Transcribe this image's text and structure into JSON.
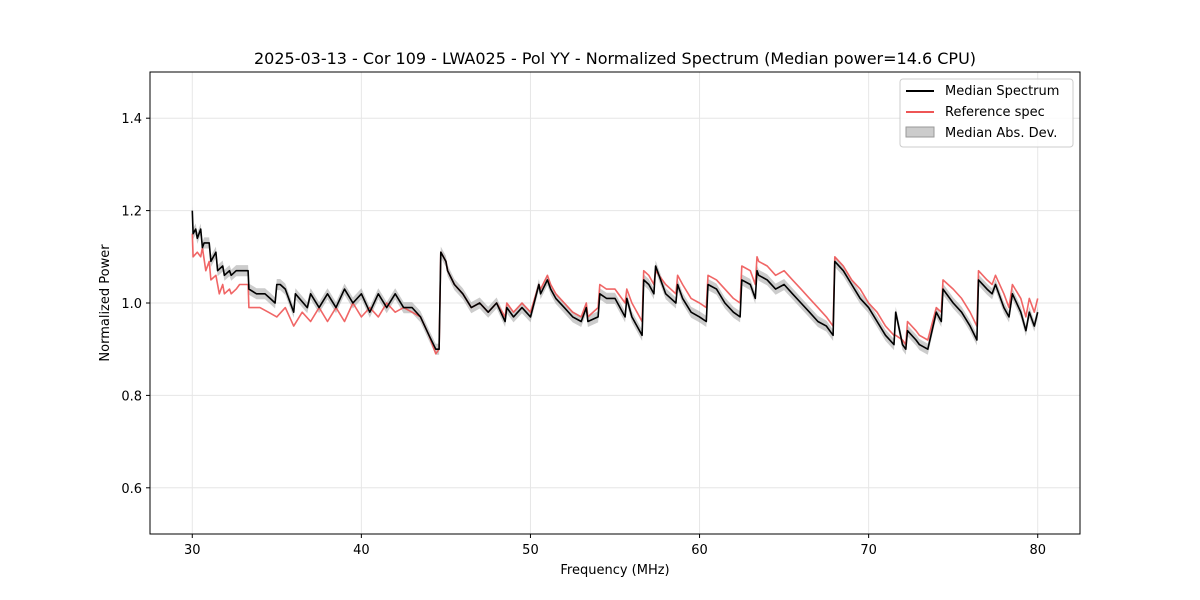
{
  "chart_data": {
    "type": "line",
    "title": "2025-03-13 - Cor 109 - LWA025 - Pol YY - Normalized Spectrum (Median power=14.6 CPU)",
    "xlabel": "Frequency (MHz)",
    "ylabel": "Normalized Power",
    "xlim": [
      27.5,
      82.5
    ],
    "ylim": [
      0.5,
      1.5
    ],
    "xticks": [
      30,
      40,
      50,
      60,
      70,
      80
    ],
    "yticks": [
      0.6,
      0.8,
      1.0,
      1.2,
      1.4
    ],
    "xtick_labels": [
      "30",
      "40",
      "50",
      "60",
      "70",
      "80"
    ],
    "ytick_labels": [
      "0.6",
      "0.8",
      "1.0",
      "1.2",
      "1.4"
    ],
    "grid": true,
    "legend_position": "top-right",
    "series": [
      {
        "name": "Median Spectrum",
        "color": "#000000",
        "x": [
          30.0,
          30.05,
          30.2,
          30.3,
          30.5,
          30.6,
          30.7,
          31.0,
          31.1,
          31.4,
          31.5,
          31.8,
          31.9,
          32.2,
          32.3,
          32.6,
          32.8,
          33.3,
          33.35,
          33.8,
          34.0,
          34.3,
          34.6,
          34.9,
          35.0,
          35.2,
          35.5,
          36.0,
          36.1,
          36.8,
          37.0,
          37.5,
          38.0,
          38.5,
          39.0,
          39.5,
          40.0,
          40.5,
          41.0,
          41.5,
          42.0,
          42.5,
          43.0,
          43.5,
          44.0,
          44.4,
          44.6,
          44.7,
          45.0,
          45.1,
          45.5,
          46.0,
          46.5,
          47.0,
          47.5,
          48.0,
          48.5,
          48.6,
          49.0,
          49.5,
          50.0,
          50.5,
          50.6,
          51.0,
          51.2,
          51.5,
          52.0,
          52.5,
          53.0,
          53.3,
          53.4,
          54.0,
          54.1,
          54.5,
          55.0,
          55.6,
          55.7,
          56.0,
          56.3,
          56.6,
          56.7,
          57.0,
          57.3,
          57.4,
          58.0,
          58.6,
          58.7,
          59.0,
          59.5,
          60.0,
          60.4,
          60.5,
          61.0,
          61.5,
          62.0,
          62.4,
          62.5,
          63.0,
          63.3,
          63.4,
          63.5,
          64.0,
          64.5,
          65.0,
          65.5,
          66.0,
          66.5,
          67.0,
          67.5,
          67.9,
          68.0,
          68.5,
          69.0,
          69.5,
          70.0,
          70.5,
          71.0,
          71.5,
          71.6,
          72.0,
          72.2,
          72.3,
          72.8,
          73.0,
          73.5,
          74.0,
          74.3,
          74.4,
          75.0,
          75.5,
          76.0,
          76.4,
          76.5,
          77.0,
          77.3,
          77.5,
          78.0,
          78.3,
          78.5,
          79.0,
          79.3,
          79.5,
          79.8,
          80.0
        ],
        "values": [
          1.2,
          1.15,
          1.16,
          1.14,
          1.16,
          1.12,
          1.13,
          1.13,
          1.09,
          1.11,
          1.07,
          1.08,
          1.06,
          1.07,
          1.06,
          1.07,
          1.07,
          1.07,
          1.03,
          1.02,
          1.02,
          1.02,
          1.01,
          1.0,
          1.04,
          1.04,
          1.03,
          0.98,
          1.02,
          0.99,
          1.02,
          0.99,
          1.02,
          0.99,
          1.03,
          1.0,
          1.02,
          0.98,
          1.02,
          0.99,
          1.02,
          0.99,
          0.99,
          0.97,
          0.93,
          0.9,
          0.9,
          1.11,
          1.09,
          1.07,
          1.04,
          1.02,
          0.99,
          1.0,
          0.98,
          1.0,
          0.96,
          0.99,
          0.97,
          0.99,
          0.97,
          1.04,
          1.02,
          1.05,
          1.03,
          1.01,
          0.99,
          0.97,
          0.96,
          0.99,
          0.96,
          0.97,
          1.02,
          1.01,
          1.01,
          0.97,
          1.01,
          0.97,
          0.95,
          0.93,
          1.05,
          1.04,
          1.02,
          1.08,
          1.02,
          1.0,
          1.04,
          1.01,
          0.98,
          0.97,
          0.96,
          1.04,
          1.03,
          1.0,
          0.98,
          0.97,
          1.05,
          1.04,
          1.01,
          1.07,
          1.06,
          1.05,
          1.03,
          1.04,
          1.02,
          1.0,
          0.98,
          0.96,
          0.95,
          0.93,
          1.09,
          1.07,
          1.04,
          1.01,
          0.99,
          0.96,
          0.93,
          0.91,
          0.98,
          0.91,
          0.9,
          0.94,
          0.92,
          0.91,
          0.9,
          0.98,
          0.96,
          1.03,
          1.0,
          0.98,
          0.95,
          0.92,
          1.05,
          1.03,
          1.02,
          1.04,
          0.99,
          0.97,
          1.02,
          0.98,
          0.94,
          0.98,
          0.95,
          0.98
        ]
      },
      {
        "name": "Reference spec",
        "color": "#ee5555",
        "x": [
          30.0,
          30.05,
          30.3,
          30.5,
          30.6,
          30.8,
          31.0,
          31.1,
          31.4,
          31.6,
          31.8,
          31.9,
          32.2,
          32.3,
          32.6,
          32.8,
          33.3,
          33.35,
          34.0,
          34.5,
          35.0,
          35.5,
          36.0,
          36.5,
          37.0,
          37.5,
          38.0,
          38.5,
          39.0,
          39.5,
          40.0,
          40.5,
          41.0,
          41.5,
          42.0,
          42.5,
          43.0,
          43.5,
          44.0,
          44.4,
          44.6,
          44.7,
          45.0,
          45.1,
          45.5,
          46.0,
          46.5,
          47.0,
          47.5,
          48.0,
          48.5,
          48.6,
          49.0,
          49.5,
          50.0,
          50.5,
          50.6,
          51.0,
          51.2,
          51.5,
          52.0,
          52.5,
          53.0,
          53.3,
          53.4,
          54.0,
          54.1,
          54.5,
          55.0,
          55.6,
          55.7,
          56.0,
          56.3,
          56.6,
          56.7,
          57.0,
          57.3,
          57.4,
          58.0,
          58.6,
          58.7,
          59.0,
          59.5,
          60.0,
          60.4,
          60.5,
          61.0,
          61.5,
          62.0,
          62.4,
          62.5,
          63.0,
          63.3,
          63.4,
          63.5,
          64.0,
          64.5,
          65.0,
          65.5,
          66.0,
          66.5,
          67.0,
          67.5,
          67.9,
          68.0,
          68.5,
          69.0,
          69.5,
          70.0,
          70.5,
          71.0,
          71.5,
          71.6,
          72.0,
          72.2,
          72.3,
          72.8,
          73.0,
          73.5,
          74.0,
          74.3,
          74.4,
          75.0,
          75.5,
          76.0,
          76.4,
          76.5,
          77.0,
          77.3,
          77.5,
          78.0,
          78.3,
          78.5,
          79.0,
          79.3,
          79.5,
          79.8,
          80.0
        ],
        "values": [
          1.15,
          1.1,
          1.11,
          1.1,
          1.12,
          1.07,
          1.09,
          1.05,
          1.06,
          1.02,
          1.04,
          1.02,
          1.03,
          1.02,
          1.03,
          1.04,
          1.04,
          0.99,
          0.99,
          0.98,
          0.97,
          0.99,
          0.95,
          0.98,
          0.96,
          0.99,
          0.96,
          0.99,
          0.96,
          1.0,
          0.97,
          0.99,
          0.97,
          1.0,
          0.98,
          0.99,
          0.98,
          0.97,
          0.93,
          0.89,
          0.9,
          1.11,
          1.09,
          1.07,
          1.04,
          1.02,
          0.99,
          1.0,
          0.98,
          1.0,
          0.97,
          1.0,
          0.98,
          1.0,
          0.98,
          1.04,
          1.03,
          1.06,
          1.04,
          1.02,
          1.0,
          0.98,
          0.97,
          1.0,
          0.97,
          0.99,
          1.04,
          1.03,
          1.03,
          1.0,
          1.03,
          1.0,
          0.98,
          0.96,
          1.07,
          1.06,
          1.04,
          1.07,
          1.04,
          1.02,
          1.06,
          1.04,
          1.01,
          1.0,
          0.99,
          1.06,
          1.05,
          1.03,
          1.01,
          1.0,
          1.08,
          1.07,
          1.04,
          1.1,
          1.09,
          1.08,
          1.06,
          1.07,
          1.05,
          1.03,
          1.01,
          0.99,
          0.97,
          0.95,
          1.1,
          1.08,
          1.05,
          1.03,
          1.0,
          0.98,
          0.95,
          0.93,
          0.93,
          0.92,
          0.91,
          0.96,
          0.94,
          0.93,
          0.92,
          0.99,
          0.98,
          1.05,
          1.03,
          1.01,
          0.98,
          0.95,
          1.07,
          1.05,
          1.04,
          1.06,
          1.02,
          0.99,
          1.04,
          1.01,
          0.97,
          1.01,
          0.98,
          1.01
        ]
      }
    ],
    "band": {
      "name": "Median Abs. Dev.",
      "color": "#999999",
      "half_width": 0.012
    },
    "legend": [
      "Median Spectrum",
      "Reference spec",
      "Median Abs. Dev."
    ]
  }
}
